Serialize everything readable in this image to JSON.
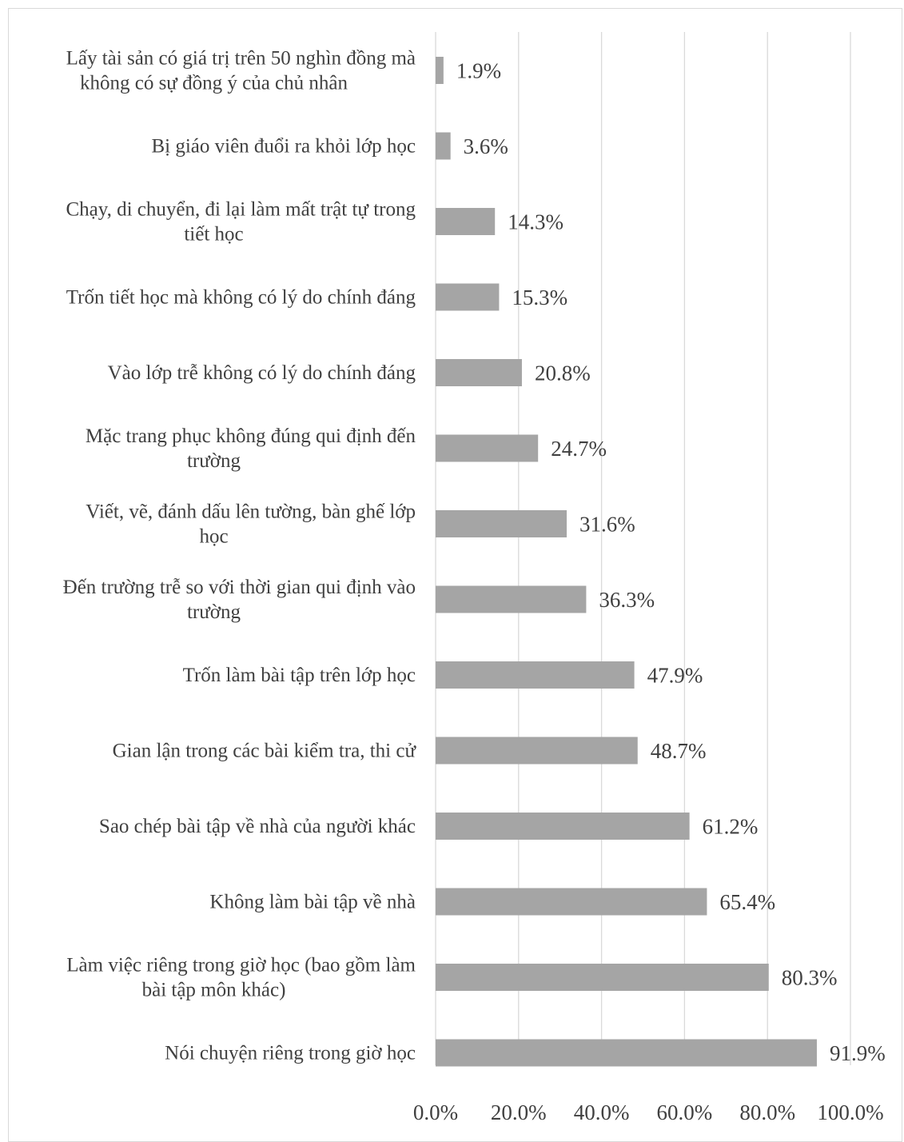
{
  "chart_data": {
    "type": "bar",
    "orientation": "horizontal",
    "title": "",
    "xlabel": "",
    "ylabel": "",
    "xlim": [
      0,
      100
    ],
    "x_ticks": [
      "0.0%",
      "20.0%",
      "40.0%",
      "60.0%",
      "80.0%",
      "100.0%"
    ],
    "grid": "vertical",
    "legend": "none",
    "bar_color": "#a5a5a5",
    "categories": [
      [
        "Lấy tài sản có giá trị trên 50 nghìn đồng mà",
        "không có sự đồng ý của chủ nhân"
      ],
      [
        "Bị giáo viên đuổi ra khỏi lớp học"
      ],
      [
        "Chạy, di chuyển, đi lại làm mất trật tự trong",
        "tiết học"
      ],
      [
        "Trốn tiết học mà không có lý do chính đáng"
      ],
      [
        "Vào lớp trễ không có lý do chính đáng"
      ],
      [
        "Mặc trang phục không đúng qui định đến",
        "trường"
      ],
      [
        "Viết, vẽ, đánh dấu lên tường, bàn ghế lớp",
        "học"
      ],
      [
        "Đến trường trễ so với thời gian qui định vào",
        "trường"
      ],
      [
        "Trốn làm bài tập trên lớp học"
      ],
      [
        "Gian lận trong các bài kiểm tra, thi cử"
      ],
      [
        "Sao chép bài tập về nhà của người khác"
      ],
      [
        "Không làm bài tập về nhà"
      ],
      [
        "Làm việc riêng trong giờ học (bao gồm làm",
        "bài tập môn khác)"
      ],
      [
        "Nói chuyện riêng trong giờ học"
      ]
    ],
    "values": [
      1.9,
      3.6,
      14.3,
      15.3,
      20.8,
      24.7,
      31.6,
      36.3,
      47.9,
      48.7,
      61.2,
      65.4,
      80.3,
      91.9
    ],
    "value_labels": [
      "1.9%",
      "3.6%",
      "14.3%",
      "15.3%",
      "20.8%",
      "24.7%",
      "31.6%",
      "36.3%",
      "47.9%",
      "48.7%",
      "61.2%",
      "65.4%",
      "80.3%",
      "91.9%"
    ]
  }
}
